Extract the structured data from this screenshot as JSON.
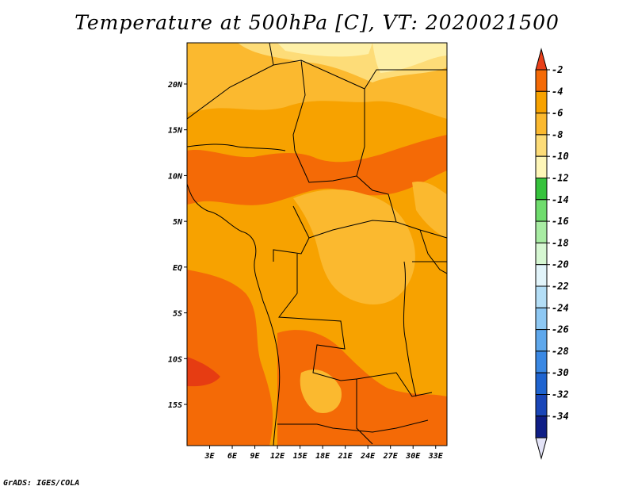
{
  "title": "Temperature at 500hPa [C], VT: 2020021500",
  "credit": "GrADS: IGES/COLA",
  "map": {
    "lat_range": [
      -19.5,
      24.5
    ],
    "lon_range": [
      0,
      34.5
    ],
    "lat_ticks": [
      "20N",
      "15N",
      "10N",
      "5N",
      "EQ",
      "5S",
      "10S",
      "15S"
    ],
    "lon_ticks": [
      "3E",
      "6E",
      "9E",
      "12E",
      "15E",
      "18E",
      "21E",
      "24E",
      "27E",
      "30E",
      "33E"
    ]
  },
  "colorbar": {
    "labels": [
      "-2",
      "-4",
      "-6",
      "-8",
      "-10",
      "-12",
      "-14",
      "-16",
      "-18",
      "-20",
      "-22",
      "-24",
      "-26",
      "-28",
      "-30",
      "-32",
      "-34"
    ],
    "colors": [
      "#e8401a",
      "#f46a06",
      "#f7a200",
      "#fbb92f",
      "#fddc78",
      "#fef6b8",
      "#36c23c",
      "#6fdc6d",
      "#a8eca3",
      "#d6f7d2",
      "#e2f4fa",
      "#b4def6",
      "#8ec8f3",
      "#5fa8ec",
      "#3a88e3",
      "#1f64d0",
      "#1a46b8",
      "#0f1e86",
      "#e3e3f7"
    ]
  },
  "colors": {
    "warmest": "#e63c12",
    "warm": "#f46a06",
    "mid": "#f7a200",
    "cool": "#fbb92f",
    "coolest": "#fddc78",
    "palest": "#fef0a8"
  }
}
